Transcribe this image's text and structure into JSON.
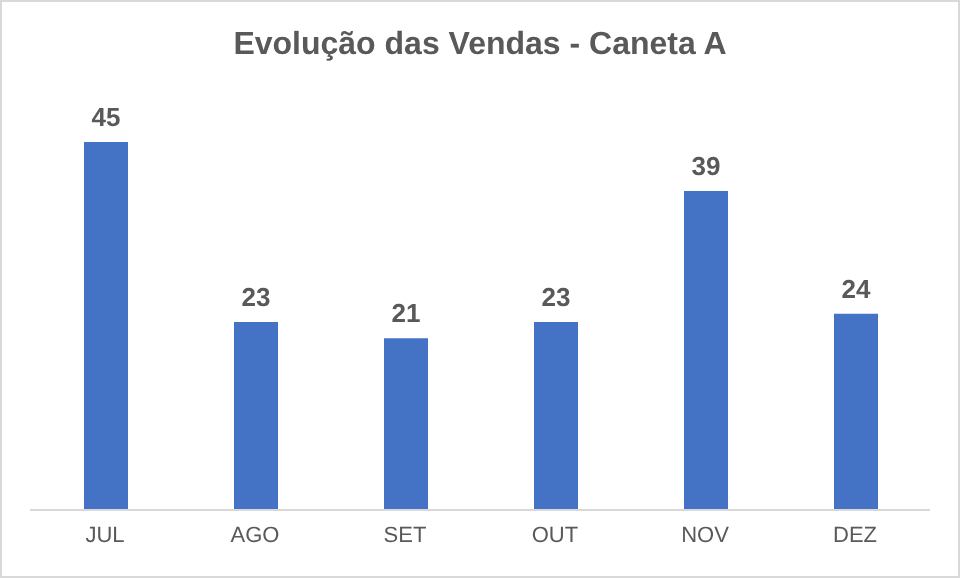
{
  "chart_data": {
    "type": "bar",
    "title": "Evolução das Vendas - Caneta A",
    "categories": [
      "JUL",
      "AGO",
      "SET",
      "OUT",
      "NOV",
      "DEZ"
    ],
    "values": [
      45,
      23,
      21,
      23,
      39,
      24
    ],
    "color": "#4472c4",
    "data_labels": true
  }
}
